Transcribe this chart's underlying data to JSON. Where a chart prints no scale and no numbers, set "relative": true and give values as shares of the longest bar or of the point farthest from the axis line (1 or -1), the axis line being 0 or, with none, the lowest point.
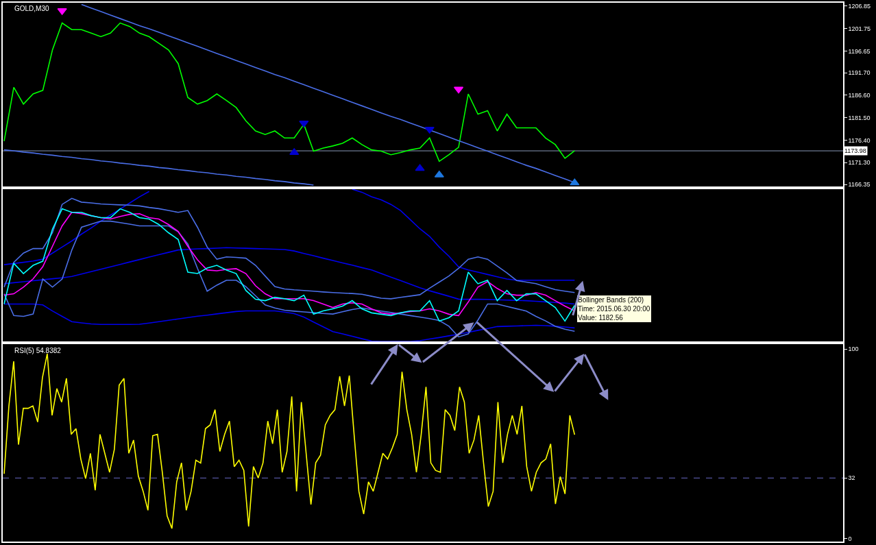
{
  "chart_data": [
    {
      "type": "line",
      "title": "GOLD,M30",
      "categories": [
        null,
        null,
        null,
        null,
        null,
        null,
        null,
        null,
        null,
        null,
        null,
        null,
        null,
        null,
        null,
        null,
        null,
        null,
        null,
        null,
        null,
        null,
        null,
        null,
        null,
        null,
        null,
        null,
        null,
        null,
        null,
        null,
        null,
        null,
        null,
        null,
        null,
        null,
        null,
        null,
        null,
        null,
        null,
        null,
        null,
        null,
        null,
        null,
        null,
        null,
        null,
        null,
        null,
        null,
        null,
        null,
        null,
        null,
        null,
        null
      ],
      "ylim": [
        1165.9,
        1207.6
      ],
      "yticks": [
        1166.35,
        {
          "value": 1171.3,
          "label": "1171.30"
        },
        {
          "value": 1176.4,
          "label": "1176.40"
        },
        {
          "value": 1181.5,
          "label": "1181.50"
        },
        {
          "value": 1186.6,
          "label": "1186.60"
        },
        {
          "value": 1191.7,
          "label": "1191.70"
        },
        1196.65,
        1201.75,
        1206.85
      ],
      "tick_labels": "y",
      "grid": false,
      "marker": "none",
      "series": [
        {
          "color": "#00ff00",
          "values": [
            1176.2,
            1188.4,
            1184.6,
            1186.9,
            1187.7,
            1196.9,
            1203.0,
            1201.5,
            1201.5,
            1200.7,
            1199.9,
            1200.7,
            1203.0,
            1202.2,
            1200.7,
            1199.9,
            1198.4,
            1196.9,
            1193.8,
            1186.1,
            1184.6,
            1185.4,
            1186.9,
            1185.4,
            1183.8,
            1180.8,
            1178.5,
            1177.7,
            1178.5,
            1176.9,
            1176.9,
            1180.0,
            1173.9,
            1174.6,
            1175.1,
            1175.7,
            1176.9,
            1175.4,
            1174.2,
            1173.9,
            1173.1,
            1173.6,
            1174.2,
            1174.6,
            1176.9,
            1171.6,
            1173.1,
            1174.8,
            1186.9,
            1182.3,
            1183.1,
            1178.5,
            1182.3,
            1179.2,
            1179.2,
            1179.2,
            1176.9,
            1175.4,
            1172.3,
            1174.0
          ]
        },
        {
          "color": "#4a6ee8",
          "values": [
            null,
            null,
            null,
            null,
            null,
            null,
            null,
            null,
            1207.2,
            1206.4,
            1205.6,
            1204.8,
            1204.0,
            1203.2,
            1202.4,
            1201.7,
            1200.9,
            1200.1,
            1199.3,
            1198.5,
            1197.7,
            1196.9,
            1196.1,
            1195.3,
            1194.5,
            1193.7,
            1192.9,
            1192.1,
            1191.3,
            1190.6,
            1189.8,
            1189.0,
            1188.2,
            1187.4,
            1186.6,
            1185.8,
            1185.0,
            1184.2,
            1183.4,
            1182.6,
            1181.8,
            1181.1,
            1180.3,
            1179.5,
            1178.7,
            1177.9,
            1177.1,
            1176.3,
            1175.5,
            1174.7,
            1173.9,
            1173.1,
            1172.3,
            1171.5,
            1170.7,
            1170.0,
            1169.2,
            1168.4,
            1167.6,
            1166.8
          ]
        },
        {
          "color": "#4a6ee8",
          "values": [
            1174.2,
            1174.0,
            1173.7,
            1173.5,
            1173.2,
            1173.0,
            1172.7,
            1172.5,
            1172.2,
            1172.0,
            1171.7,
            1171.5,
            1171.2,
            1171.0,
            1170.7,
            1170.5,
            1170.2,
            1170.0,
            1169.7,
            1169.5,
            1169.2,
            1169.0,
            1168.7,
            1168.5,
            1168.2,
            1168.0,
            1167.7,
            1167.5,
            1167.2,
            1167.0,
            1166.7,
            1166.5,
            1166.2,
            null,
            null,
            null,
            null,
            null,
            null,
            null,
            null,
            null,
            null,
            null,
            null,
            null,
            null,
            null,
            null,
            null,
            null,
            null,
            null,
            null,
            null,
            null,
            null,
            null,
            null,
            null
          ]
        },
        {
          "type": "scatter",
          "marker": "triangle",
          "color": "#ff00ff",
          "values": [
            null,
            null,
            null,
            null,
            null,
            null,
            1205.8,
            null,
            null,
            null,
            null,
            null,
            null,
            null,
            null,
            null,
            null,
            null,
            null,
            null,
            null,
            null,
            null,
            null,
            null,
            null,
            null,
            null,
            null,
            null,
            null,
            null,
            null,
            null,
            null,
            null,
            null,
            null,
            null,
            null,
            null,
            null,
            null,
            null,
            null,
            null,
            null,
            1188.0,
            null,
            null,
            null,
            null,
            null,
            null,
            null,
            null,
            null,
            null,
            null,
            null
          ]
        },
        {
          "type": "scatter",
          "marker": "triangle",
          "color": "#0000cc",
          "values": [
            null,
            null,
            null,
            null,
            null,
            null,
            null,
            null,
            null,
            null,
            null,
            null,
            null,
            null,
            null,
            null,
            null,
            null,
            null,
            null,
            null,
            null,
            null,
            null,
            null,
            null,
            null,
            null,
            null,
            null,
            null,
            1180.3,
            null,
            null,
            null,
            null,
            null,
            null,
            null,
            null,
            null,
            null,
            null,
            null,
            1178.9,
            null,
            null,
            null,
            null,
            null,
            null,
            null,
            null,
            null,
            null,
            null,
            null,
            null,
            null,
            null
          ]
        },
        {
          "type": "scatter",
          "marker": "triangle",
          "color": "#0000cc",
          "values": [
            null,
            null,
            null,
            null,
            null,
            null,
            null,
            null,
            null,
            null,
            null,
            null,
            null,
            null,
            null,
            null,
            null,
            null,
            null,
            null,
            null,
            null,
            null,
            null,
            null,
            null,
            null,
            null,
            null,
            null,
            1173.6,
            null,
            null,
            null,
            null,
            null,
            null,
            null,
            null,
            null,
            null,
            null,
            null,
            1170.0,
            null,
            null,
            null,
            null,
            null,
            null,
            null,
            null,
            null,
            null,
            null,
            null,
            null,
            null,
            null,
            null
          ]
        },
        {
          "type": "scatter",
          "marker": "triangle",
          "color": "#1e78e0",
          "values": [
            null,
            null,
            null,
            null,
            null,
            null,
            null,
            null,
            null,
            null,
            null,
            null,
            null,
            null,
            null,
            null,
            null,
            null,
            null,
            null,
            null,
            null,
            null,
            null,
            null,
            null,
            null,
            null,
            null,
            null,
            null,
            null,
            null,
            null,
            null,
            null,
            null,
            null,
            null,
            null,
            null,
            null,
            null,
            null,
            null,
            1168.5,
            null,
            null,
            null,
            null,
            null,
            null,
            null,
            null,
            null,
            null,
            null,
            null,
            null,
            1166.7
          ]
        }
      ],
      "ref_lines": [
        {
          "axis": "y",
          "value": 1173.98,
          "label": "1173.98",
          "color": "#8898b8",
          "line_style": "solid"
        }
      ]
    },
    {
      "type": "line",
      "relative": true,
      "tick_labels": false,
      "grid": false,
      "marker": "none",
      "categories": [
        null,
        null,
        null,
        null,
        null,
        null,
        null,
        null,
        null,
        null,
        null,
        null,
        null,
        null,
        null,
        null,
        null,
        null,
        null,
        null,
        null,
        null,
        null,
        null,
        null,
        null,
        null,
        null,
        null,
        null,
        null,
        null,
        null,
        null,
        null,
        null,
        null,
        null,
        null,
        null,
        null,
        null,
        null,
        null,
        null,
        null,
        null,
        null,
        null,
        null,
        null,
        null,
        null,
        null,
        null,
        null,
        null,
        null,
        null,
        null
      ],
      "annotations": [
        "Bollinger Bands (200)\nTime: 2015.06.30 20:00\nValue: 1182.56"
      ],
      "series": [
        {
          "color": "#0000ee",
          "values": [
            0.504,
            0.512,
            0.52,
            0.528,
            0.54,
            0.58,
            0.62,
            0.66,
            0.705,
            0.745,
            0.79,
            0.83,
            0.87,
            0.91,
            0.95,
            0.985,
            null,
            null,
            null,
            null,
            null,
            null,
            null,
            null,
            null,
            null,
            null,
            null,
            null,
            null,
            null,
            null,
            null,
            null,
            null,
            null,
            1.0,
            0.98,
            0.95,
            0.93,
            0.9,
            0.86,
            0.8,
            0.74,
            0.69,
            0.62,
            0.56,
            0.49,
            0.47,
            0.455,
            0.44,
            0.425,
            0.41,
            0.402,
            0.402,
            0.402,
            0.402,
            0.402,
            0.402,
            0.402
          ]
        },
        {
          "color": "#0000ee",
          "values": [
            0.379,
            0.386,
            0.392,
            0.399,
            0.405,
            0.412,
            0.418,
            0.427,
            0.443,
            0.459,
            0.474,
            0.49,
            0.506,
            0.522,
            0.538,
            0.554,
            0.57,
            0.585,
            0.601,
            0.605,
            0.608,
            0.61,
            0.613,
            0.616,
            0.614,
            0.612,
            0.61,
            0.608,
            0.606,
            0.604,
            0.594,
            0.578,
            0.563,
            0.547,
            0.532,
            0.516,
            0.501,
            0.485,
            0.47,
            0.446,
            0.423,
            0.4,
            0.376,
            0.353,
            0.333,
            0.315,
            0.297,
            0.278,
            0.277,
            0.277,
            0.276,
            0.274,
            0.272,
            0.27,
            0.268,
            0.264,
            0.26,
            0.256,
            0.252,
            0.246
          ]
        },
        {
          "color": "#0000ee",
          "values": [
            0.246,
            0.246,
            0.246,
            0.246,
            0.24,
            0.2,
            0.165,
            0.13,
            0.122,
            0.115,
            0.112,
            0.112,
            0.112,
            0.112,
            0.113,
            0.121,
            0.13,
            0.139,
            0.148,
            0.157,
            0.166,
            0.173,
            0.181,
            0.189,
            0.197,
            0.201,
            0.201,
            0.201,
            0.201,
            0.193,
            0.183,
            0.16,
            0.128,
            0.096,
            0.065,
            0.05,
            0.034,
            0.018,
            0.003,
            0,
            0,
            0,
            0,
            0.005,
            0.016,
            0.026,
            0.037,
            0.048,
            0.06,
            0.073,
            0.085,
            0.098,
            0.1,
            0.102,
            0.104,
            0.106,
            0.104,
            0.1,
            0.095,
            0.089
          ]
        },
        {
          "color": "#4a6ee8",
          "values": [
            0.357,
            0.52,
            0.58,
            0.61,
            0.61,
            0.714,
            0.9,
            0.94,
            0.915,
            0.91,
            0.903,
            0.9,
            0.897,
            0.895,
            0.89,
            0.88,
            0.872,
            0.86,
            0.848,
            0.86,
            0.75,
            0.62,
            0.54,
            0.555,
            0.552,
            0.547,
            0.5,
            0.43,
            0.36,
            0.345,
            0.339,
            0.335,
            0.33,
            0.325,
            0.321,
            0.318,
            0.315,
            0.31,
            0.297,
            0.284,
            0.28,
            0.29,
            0.298,
            0.307,
            0.35,
            0.39,
            0.43,
            0.48,
            0.54,
            0.555,
            0.54,
            0.495,
            0.45,
            0.4,
            0.39,
            0.38,
            0.36,
            0.34,
            0.33,
            0.321
          ]
        },
        {
          "color": "#4a6ee8",
          "values": [
            0.313,
            0.17,
            0.165,
            0.18,
            0.41,
            0.357,
            0.41,
            0.6,
            0.75,
            0.77,
            0.79,
            0.79,
            0.78,
            0.77,
            0.759,
            0.759,
            0.759,
            0.759,
            0.72,
            0.64,
            0.48,
            0.33,
            0.37,
            0.402,
            0.402,
            0.36,
            0.3,
            0.24,
            0.22,
            0.205,
            0.199,
            0.194,
            0.189,
            0.184,
            0.18,
            0.195,
            0.21,
            0.22,
            0.21,
            0.2,
            0.19,
            0.18,
            0.17,
            0.16,
            0.15,
            0.138,
            0.1,
            0.03,
            0.05,
            0.14,
            0.246,
            0.246,
            0.23,
            0.215,
            0.2,
            0.165,
            0.135,
            0.1,
            0.08,
            0.067
          ]
        },
        {
          "color": "#ff00ff",
          "values": [
            0.304,
            0.313,
            0.357,
            0.411,
            0.491,
            0.625,
            0.759,
            0.848,
            0.839,
            0.826,
            0.813,
            0.804,
            0.821,
            0.835,
            0.839,
            0.813,
            0.804,
            0.768,
            0.723,
            0.625,
            0.536,
            0.469,
            0.464,
            0.473,
            0.478,
            0.446,
            0.366,
            0.313,
            0.281,
            0.281,
            0.281,
            0.281,
            0.268,
            0.246,
            0.223,
            0.246,
            0.254,
            0.246,
            0.214,
            0.188,
            0.179,
            0.188,
            0.196,
            0.201,
            0.214,
            0.201,
            0.179,
            0.17,
            0.259,
            0.357,
            0.393,
            0.348,
            0.313,
            0.304,
            0.304,
            0.321,
            0.304,
            0.268,
            0.232,
            0.201
          ]
        },
        {
          "color": "#00ffff",
          "values": [
            0.246,
            0.513,
            0.446,
            0.5,
            0.527,
            0.737,
            0.871,
            0.848,
            0.848,
            0.826,
            0.813,
            0.813,
            0.871,
            0.848,
            0.813,
            0.804,
            0.768,
            0.714,
            0.67,
            0.455,
            0.446,
            0.482,
            0.5,
            0.469,
            0.446,
            0.335,
            0.277,
            0.268,
            0.29,
            0.281,
            0.268,
            0.304,
            0.179,
            0.201,
            0.214,
            0.232,
            0.268,
            0.214,
            0.188,
            0.179,
            0.17,
            0.188,
            0.201,
            0.201,
            0.268,
            0.134,
            0.156,
            0.201,
            0.455,
            0.379,
            0.402,
            0.268,
            0.335,
            0.268,
            0.313,
            0.313,
            0.268,
            0.223,
            0.134,
            0.237
          ]
        }
      ]
    },
    {
      "type": "line",
      "title": "RSI(5) 54.8382",
      "tick_labels": "y",
      "grid": false,
      "marker": "none",
      "categories": [
        null,
        null,
        null,
        null,
        null,
        null,
        null,
        null,
        null,
        null,
        null,
        null,
        null,
        null,
        null,
        null,
        null,
        null,
        null,
        null,
        null,
        null,
        null,
        null,
        null,
        null,
        null,
        null,
        null,
        null,
        null,
        null,
        null,
        null,
        null,
        null,
        null,
        null,
        null,
        null,
        null,
        null,
        null,
        null,
        null,
        null,
        null,
        null,
        null,
        null,
        null,
        null,
        null,
        null,
        null,
        null,
        null,
        null,
        null,
        null,
        null,
        null,
        null,
        null,
        null,
        null,
        null,
        null,
        null,
        null,
        null,
        null,
        null,
        null,
        null,
        null,
        null,
        null,
        null,
        null,
        null,
        null,
        null,
        null,
        null,
        null,
        null,
        null,
        null,
        null,
        null,
        null,
        null,
        null,
        null,
        null,
        null,
        null,
        null,
        null,
        null,
        null,
        null,
        null,
        null,
        null,
        null,
        null,
        null,
        null,
        null,
        null,
        null,
        null,
        null,
        null,
        null,
        null,
        null,
        null
      ],
      "ylim": [
        -1.5,
        102.5
      ],
      "yticks": [
        0,
        32,
        100
      ],
      "series": [
        {
          "color": "#ffff00",
          "values": [
            34.2,
            70,
            93.5,
            49.6,
            68.7,
            68.7,
            70,
            61.5,
            85,
            97.5,
            65,
            79.1,
            72,
            84.5,
            55,
            58,
            42,
            31.7,
            45,
            25.5,
            55,
            45,
            35,
            47.1,
            80.9,
            84.5,
            45,
            52,
            33,
            25,
            15,
            54.3,
            55,
            35,
            12,
            5.4,
            30,
            40,
            15,
            25,
            41.4,
            39.9,
            58,
            60,
            68,
            46.0,
            55,
            62,
            38,
            41.4,
            36,
            6.5,
            38,
            32,
            40,
            62,
            50,
            68,
            35,
            46.0,
            75,
            25,
            72,
            45,
            18.0,
            40,
            44,
            60,
            65,
            68,
            85.6,
            70,
            86,
            55,
            25,
            13,
            30,
            25,
            35,
            45,
            42,
            48,
            55,
            88,
            68,
            55,
            35,
            55,
            80,
            40,
            36,
            35,
            68,
            65,
            57,
            80,
            72,
            45,
            52,
            65,
            40,
            17,
            25,
            72,
            40,
            55,
            65,
            55,
            70,
            38.1,
            25,
            35,
            40,
            42,
            50,
            18.3,
            32.7,
            23.6,
            65,
            54.8
          ]
        }
      ],
      "ref_lines": [
        {
          "axis": "y",
          "value": 32,
          "color": "#6a6ac8",
          "line_style": "dashed"
        }
      ]
    }
  ]
}
